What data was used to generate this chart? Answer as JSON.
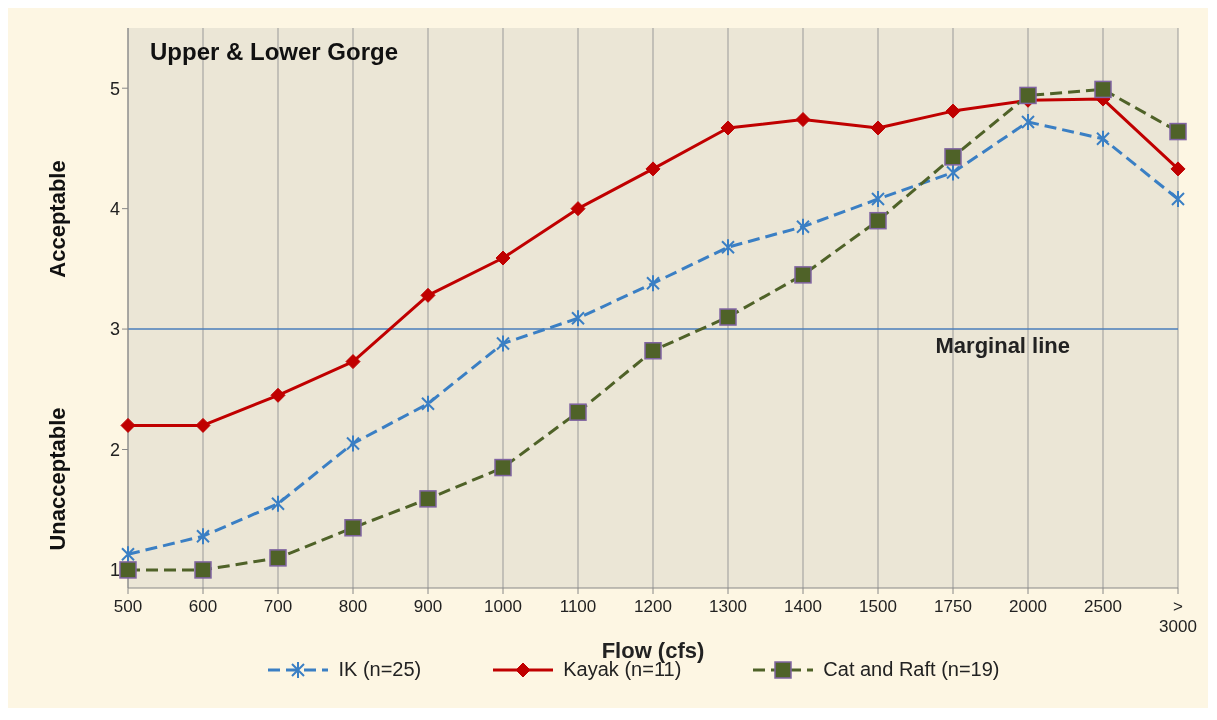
{
  "chart_data": {
    "type": "line",
    "title": "Upper & Lower Gorge",
    "xlabel": "Flow (cfs)",
    "categories": [
      "500",
      "600",
      "700",
      "800",
      "900",
      "1000",
      "1100",
      "1200",
      "1300",
      "1400",
      "1500",
      "1750",
      "2000",
      "2500",
      "> 3000"
    ],
    "series": [
      {
        "name": "IK (n=25)",
        "color": "#3a7fc4",
        "marker": "cross",
        "line_style": "dashed",
        "values": [
          1.13,
          1.28,
          1.55,
          2.05,
          2.38,
          2.88,
          3.09,
          3.38,
          3.68,
          3.85,
          4.08,
          4.3,
          4.72,
          4.58,
          4.08
        ]
      },
      {
        "name": "Kayak (n=11)",
        "color": "#c00000",
        "marker": "diamond",
        "line_style": "solid",
        "values": [
          2.2,
          2.2,
          2.45,
          2.73,
          3.28,
          3.59,
          4.0,
          4.33,
          4.67,
          4.74,
          4.67,
          4.81,
          4.9,
          4.91,
          4.33
        ]
      },
      {
        "name": "Cat and Raft (n=19)",
        "color": "#4f6228",
        "marker": "square",
        "line_style": "dashed",
        "values": [
          1.0,
          1.0,
          1.1,
          1.35,
          1.59,
          1.85,
          2.31,
          2.82,
          3.1,
          3.45,
          3.9,
          4.43,
          4.94,
          4.99,
          4.64
        ]
      }
    ],
    "ylim": [
      0.85,
      5.5
    ],
    "yticks": [
      1,
      2,
      3,
      4,
      5
    ],
    "grid": "x",
    "legend": "bottom",
    "ref_lines": [
      {
        "axis": "y",
        "value": 3,
        "label": "Marginal line",
        "color": "#4a7ebb"
      }
    ],
    "annotations": [
      "Acceptable",
      "Unacceptable"
    ]
  }
}
